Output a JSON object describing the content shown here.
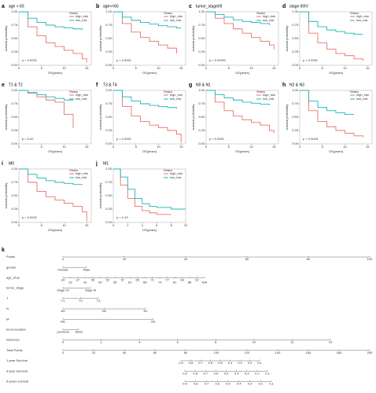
{
  "chart_data": [
    {
      "type": "line",
      "panel": "a",
      "title": "age > 65",
      "annotation": "p < 0.0001",
      "legend_title": "Strata",
      "xlabel": "OS(years)",
      "ylabel": "survival probability",
      "x": [
        0,
        2,
        4,
        6,
        8,
        10,
        12,
        14,
        15
      ],
      "xlim": [
        0,
        16
      ],
      "xticks": [
        0,
        5,
        10,
        15
      ],
      "ylim": [
        0,
        1
      ],
      "yticks": [
        {
          "value": 0,
          "label": "0.00"
        },
        {
          "value": 0.25,
          "label": "0.25"
        },
        {
          "value": 0.5,
          "label": "0.50"
        },
        {
          "value": 0.75,
          "label": "0.75"
        },
        {
          "value": 1,
          "label": "1.00"
        }
      ],
      "series": [
        {
          "name": "high_risk",
          "color": "#e8736c",
          "values": [
            1,
            0.72,
            0.55,
            0.42,
            0.35,
            0.28,
            0.22,
            0.12,
            0.05
          ]
        },
        {
          "name": "low_risk",
          "color": "#1fb5b5",
          "values": [
            1,
            0.88,
            0.8,
            0.75,
            0.72,
            0.7,
            0.68,
            0.66,
            null
          ]
        }
      ]
    },
    {
      "type": "line",
      "panel": "b",
      "title": "age<=65",
      "annotation": "p < 0.0001",
      "legend_title": "Strata",
      "xlabel": "OS(years)",
      "ylabel": "survival probability",
      "x": [
        0,
        2,
        4,
        6,
        8,
        10,
        12,
        14,
        15
      ],
      "xlim": [
        0,
        16
      ],
      "xticks": [
        0,
        5,
        10,
        15
      ],
      "ylim": [
        0,
        1
      ],
      "yticks": [
        {
          "value": 0,
          "label": "0.00"
        },
        {
          "value": 0.25,
          "label": "0.25"
        },
        {
          "value": 0.5,
          "label": "0.50"
        },
        {
          "value": 0.75,
          "label": "0.75"
        },
        {
          "value": 1,
          "label": "1.00"
        }
      ],
      "series": [
        {
          "name": "high_risk",
          "color": "#e8736c",
          "values": [
            1,
            0.78,
            0.62,
            0.52,
            0.45,
            0.38,
            0.32,
            0.22,
            null
          ]
        },
        {
          "name": "low_risk",
          "color": "#1fb5b5",
          "values": [
            1,
            0.9,
            0.84,
            0.8,
            0.77,
            0.74,
            0.72,
            0.7,
            0.7
          ]
        }
      ]
    },
    {
      "type": "line",
      "panel": "c",
      "title": "tumor_stageI/II",
      "annotation": "p = 0.00002",
      "legend_title": "Strata",
      "xlabel": "OS(years)",
      "ylabel": "survival probability",
      "x": [
        0,
        2,
        4,
        6,
        8,
        10,
        12,
        14,
        15
      ],
      "xlim": [
        0,
        16
      ],
      "xticks": [
        0,
        5,
        10,
        15
      ],
      "ylim": [
        0,
        1
      ],
      "yticks": [
        {
          "value": 0,
          "label": "0.00"
        },
        {
          "value": 0.25,
          "label": "0.25"
        },
        {
          "value": 0.5,
          "label": "0.50"
        },
        {
          "value": 0.75,
          "label": "0.75"
        },
        {
          "value": 1,
          "label": "1.00"
        }
      ],
      "series": [
        {
          "name": "high_risk",
          "color": "#e8736c",
          "values": [
            1,
            0.88,
            0.78,
            0.68,
            0.6,
            0.52,
            0.45,
            0.38,
            0.3
          ]
        },
        {
          "name": "low_risk",
          "color": "#1fb5b5",
          "values": [
            1,
            0.95,
            0.9,
            0.85,
            0.82,
            0.8,
            0.78,
            0.75,
            null
          ]
        }
      ]
    },
    {
      "type": "line",
      "panel": "d",
      "title": "stage III/IV",
      "annotation": "p < 0.0001",
      "legend_title": "Strata",
      "xlabel": "OS(years)",
      "ylabel": "survival probability",
      "x": [
        0,
        2,
        4,
        6,
        8,
        10,
        12,
        14,
        15
      ],
      "xlim": [
        0,
        16
      ],
      "xticks": [
        0,
        5,
        10,
        15
      ],
      "ylim": [
        0,
        1
      ],
      "yticks": [
        {
          "value": 0,
          "label": "0.00"
        },
        {
          "value": 0.25,
          "label": "0.25"
        },
        {
          "value": 0.5,
          "label": "0.50"
        },
        {
          "value": 0.75,
          "label": "0.75"
        },
        {
          "value": 1,
          "label": "1.00"
        }
      ],
      "series": [
        {
          "name": "high_risk",
          "color": "#e8736c",
          "values": [
            1,
            0.6,
            0.42,
            0.3,
            0.22,
            0.18,
            0.12,
            0.08,
            null
          ]
        },
        {
          "name": "low_risk",
          "color": "#1fb5b5",
          "values": [
            1,
            0.82,
            0.72,
            0.66,
            0.63,
            0.6,
            0.58,
            0.58,
            null
          ]
        }
      ]
    },
    {
      "type": "line",
      "panel": "e",
      "title": "T1 & T2",
      "annotation": "p = 0.42",
      "legend_title": "Strata",
      "xlabel": "OS(years)",
      "ylabel": "survival probability",
      "x": [
        0,
        2,
        4,
        6,
        8,
        10,
        12,
        14,
        15
      ],
      "xlim": [
        0,
        16
      ],
      "xticks": [
        0,
        5,
        10,
        15
      ],
      "ylim": [
        0,
        1
      ],
      "yticks": [
        {
          "value": 0,
          "label": "0.00"
        },
        {
          "value": 0.25,
          "label": "0.25"
        },
        {
          "value": 0.5,
          "label": "0.50"
        },
        {
          "value": 0.75,
          "label": "0.75"
        },
        {
          "value": 1,
          "label": "1.00"
        }
      ],
      "series": [
        {
          "name": "high_risk",
          "color": "#e8736c",
          "values": [
            1,
            0.95,
            0.88,
            0.82,
            0.78,
            0.55,
            0.3,
            null,
            null
          ]
        },
        {
          "name": "low_risk",
          "color": "#1fb5b5",
          "values": [
            1,
            0.96,
            0.92,
            0.88,
            0.85,
            0.82,
            0.82,
            null,
            null
          ]
        }
      ]
    },
    {
      "type": "line",
      "panel": "f",
      "title": "T3 & T4",
      "annotation": "p < 0.0001",
      "legend_title": "Strata",
      "xlabel": "OS(years)",
      "ylabel": "survival probability",
      "x": [
        0,
        2,
        4,
        6,
        8,
        10,
        12,
        14,
        15
      ],
      "xlim": [
        0,
        16
      ],
      "xticks": [
        0,
        5,
        10,
        15
      ],
      "ylim": [
        0,
        1
      ],
      "yticks": [
        {
          "value": 0,
          "label": "0.00"
        },
        {
          "value": 0.25,
          "label": "0.25"
        },
        {
          "value": 0.5,
          "label": "0.50"
        },
        {
          "value": 0.75,
          "label": "0.75"
        },
        {
          "value": 1,
          "label": "1.00"
        }
      ],
      "series": [
        {
          "name": "high_risk",
          "color": "#e8736c",
          "values": [
            1,
            0.7,
            0.52,
            0.42,
            0.35,
            0.3,
            0.25,
            0.18,
            0.02
          ]
        },
        {
          "name": "low_risk",
          "color": "#1fb5b5",
          "values": [
            1,
            0.88,
            0.8,
            0.75,
            0.72,
            0.7,
            0.68,
            0.66,
            null
          ]
        }
      ]
    },
    {
      "type": "line",
      "panel": "g",
      "title": "N0 & N1",
      "annotation": "p < 0.0001",
      "legend_title": "Strata",
      "xlabel": "OS(years)",
      "ylabel": "survival probability",
      "x": [
        0,
        2,
        4,
        6,
        8,
        10,
        12,
        14,
        15
      ],
      "xlim": [
        0,
        16
      ],
      "xticks": [
        0,
        5,
        10,
        15
      ],
      "ylim": [
        0,
        1
      ],
      "yticks": [
        {
          "value": 0,
          "label": "0.00"
        },
        {
          "value": 0.25,
          "label": "0.25"
        },
        {
          "value": 0.5,
          "label": "0.50"
        },
        {
          "value": 0.75,
          "label": "0.75"
        },
        {
          "value": 1,
          "label": "1.00"
        }
      ],
      "series": [
        {
          "name": "high_risk",
          "color": "#e8736c",
          "values": [
            1,
            0.78,
            0.62,
            0.52,
            0.45,
            0.4,
            0.35,
            0.25,
            0.2
          ]
        },
        {
          "name": "low_risk",
          "color": "#1fb5b5",
          "values": [
            1,
            0.92,
            0.86,
            0.82,
            0.78,
            0.76,
            0.74,
            0.72,
            null
          ]
        }
      ]
    },
    {
      "type": "line",
      "panel": "h",
      "title": "N2 & N3",
      "annotation": "p = 0.0018",
      "legend_title": "Strata",
      "xlabel": "OS(years)",
      "ylabel": "survival probability",
      "x": [
        0,
        2,
        4,
        6,
        8,
        10,
        12,
        14,
        15
      ],
      "xlim": [
        0,
        16
      ],
      "xticks": [
        0,
        5,
        10,
        15
      ],
      "ylim": [
        0,
        1
      ],
      "yticks": [
        {
          "value": 0,
          "label": "0.00"
        },
        {
          "value": 0.25,
          "label": "0.25"
        },
        {
          "value": 0.5,
          "label": "0.50"
        },
        {
          "value": 0.75,
          "label": "0.75"
        },
        {
          "value": 1,
          "label": "1.00"
        }
      ],
      "series": [
        {
          "name": "high_risk",
          "color": "#e8736c",
          "values": [
            1,
            0.62,
            0.42,
            0.32,
            0.25,
            0.2,
            0.15,
            0.12,
            null
          ]
        },
        {
          "name": "low_risk",
          "color": "#1fb5b5",
          "values": [
            1,
            0.8,
            0.68,
            0.62,
            0.58,
            0.55,
            0.55,
            null,
            null
          ]
        }
      ]
    },
    {
      "type": "line",
      "panel": "i",
      "title": "M0",
      "annotation": "p < 0.0001",
      "legend_title": "Strata",
      "xlabel": "OS(years)",
      "ylabel": "survival probability",
      "x": [
        0,
        2,
        4,
        6,
        8,
        10,
        12,
        14,
        15
      ],
      "xlim": [
        0,
        16
      ],
      "xticks": [
        0,
        5,
        10,
        15
      ],
      "ylim": [
        0,
        1
      ],
      "yticks": [
        {
          "value": 0,
          "label": "0.00"
        },
        {
          "value": 0.25,
          "label": "0.25"
        },
        {
          "value": 0.5,
          "label": "0.50"
        },
        {
          "value": 0.75,
          "label": "0.75"
        },
        {
          "value": 1,
          "label": "1.00"
        }
      ],
      "series": [
        {
          "name": "high_risk",
          "color": "#e8736c",
          "values": [
            1,
            0.75,
            0.58,
            0.48,
            0.42,
            0.36,
            0.3,
            0.2,
            0.02
          ]
        },
        {
          "name": "low_risk",
          "color": "#1fb5b5",
          "values": [
            1,
            0.9,
            0.83,
            0.78,
            0.75,
            0.73,
            0.71,
            0.7,
            null
          ]
        }
      ]
    },
    {
      "type": "line",
      "panel": "j",
      "title": "M1",
      "annotation": "p = 0.19",
      "legend_title": "Strata",
      "xlabel": "OS(years)",
      "ylabel": "survival probability",
      "x": [
        0,
        1,
        2,
        3,
        4,
        5,
        6,
        8,
        10
      ],
      "xlim": [
        0,
        10
      ],
      "xticks": [
        0,
        2,
        4,
        6,
        8,
        10
      ],
      "ylim": [
        0,
        1
      ],
      "yticks": [
        {
          "value": 0,
          "label": "0.00"
        },
        {
          "value": 0.25,
          "label": "0.25"
        },
        {
          "value": 0.5,
          "label": "0.50"
        },
        {
          "value": 0.75,
          "label": "0.75"
        },
        {
          "value": 1,
          "label": "1.00"
        }
      ],
      "series": [
        {
          "name": "high_risk",
          "color": "#e8736c",
          "values": [
            1,
            0.7,
            0.45,
            0.3,
            0.22,
            0.18,
            0.15,
            0.15,
            null
          ]
        },
        {
          "name": "low_risk",
          "color": "#1fb5b5",
          "values": [
            1,
            0.85,
            0.62,
            0.45,
            0.35,
            0.3,
            0.28,
            0.25,
            0.25
          ]
        }
      ]
    }
  ],
  "nomogram": {
    "panel": "k",
    "rows": [
      {
        "label": "Points",
        "ticks": [
          "0",
          "20",
          "40",
          "60",
          "80",
          "100"
        ]
      },
      {
        "label": "gender",
        "ticks": [
          "Female",
          "Male"
        ]
      },
      {
        "label": "age_drop",
        "ticks": [
          "24",
          "32",
          "37",
          "41",
          "45",
          "49",
          "52",
          "55",
          "57",
          "61",
          "65",
          "68",
          "71",
          "74",
          "77",
          "81",
          "84",
          "88",
          "92",
          "N/A"
        ]
      },
      {
        "label": "tumor_stage",
        "ticks": [
          "stage I/II",
          "stage III"
        ]
      },
      {
        "label": "T",
        "ticks": [
          "T1",
          "T2",
          "T3"
        ]
      },
      {
        "label": "N",
        "ticks": [
          "N0",
          "N2",
          "N1"
        ]
      },
      {
        "label": "M",
        "ticks": [
          "M0",
          "M1"
        ]
      },
      {
        "label": "tumor.location",
        "ticks": [
          "proximal",
          "distal"
        ]
      },
      {
        "label": "riskScore",
        "ticks": [
          "0",
          "2",
          "4",
          "6",
          "8",
          "10",
          "12",
          "14"
        ]
      },
      {
        "label": "Total Points",
        "ticks": [
          "0",
          "20",
          "40",
          "60",
          "80",
          "100",
          "120",
          "140",
          "160",
          "180",
          "200"
        ]
      },
      {
        "label": "1-year Survival",
        "ticks": [
          "0.9",
          "0.8",
          "0.7",
          "0.6",
          "0.5",
          "0.4",
          "0.3",
          "0.2",
          "0.1"
        ]
      },
      {
        "label": "3-year Survival",
        "ticks": [
          "0.9",
          "0.8",
          "0.7",
          "0.6",
          "0.5",
          "0.4",
          "0.3",
          "0.2",
          "0.1"
        ]
      },
      {
        "label": "5-years survival",
        "ticks": [
          "0.9",
          "0.8",
          "0.7",
          "0.6",
          "0.5",
          "0.4",
          "0.3",
          "0.2",
          "0.1"
        ]
      }
    ]
  }
}
